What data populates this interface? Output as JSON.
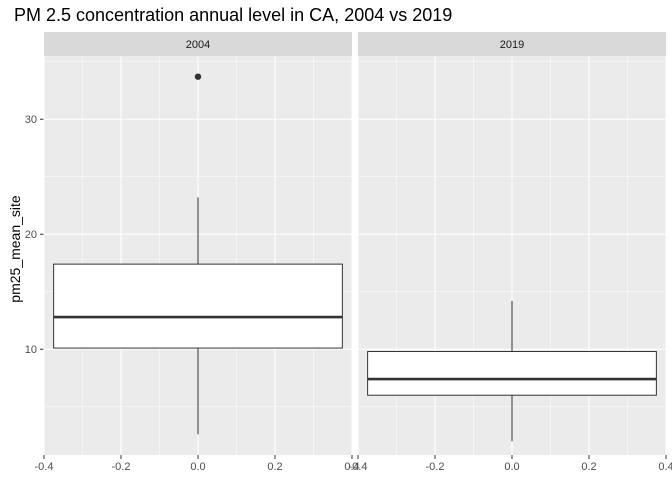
{
  "chart_data": {
    "type": "box",
    "title": "PM 2.5 concentration annual level in CA, 2004 vs 2019",
    "xlabel": "",
    "ylabel": "pm25_mean_site",
    "xlim": [
      -0.4,
      0.4
    ],
    "ylim": [
      0.8,
      35.5
    ],
    "x_ticks": [
      -0.4,
      -0.2,
      0.0,
      0.2,
      0.4
    ],
    "x_tick_labels": [
      "-0.4",
      "-0.2",
      "0.0",
      "0.2",
      "0.4"
    ],
    "y_ticks": [
      10,
      20,
      30
    ],
    "y_tick_labels": [
      "10",
      "20",
      "30"
    ],
    "grid": true,
    "facets": [
      {
        "label": "2004",
        "box": {
          "x_min": -0.375,
          "x_max": 0.375,
          "x_center": 0.0,
          "whisker_low": 2.6,
          "q1": 10.1,
          "median": 12.8,
          "q3": 17.4,
          "whisker_high": 23.2
        },
        "outliers": [
          33.7
        ]
      },
      {
        "label": "2019",
        "box": {
          "x_min": -0.375,
          "x_max": 0.375,
          "x_center": 0.0,
          "whisker_low": 2.0,
          "q1": 6.0,
          "median": 7.4,
          "q3": 9.8,
          "whisker_high": 14.2
        },
        "outliers": []
      }
    ],
    "colors": {
      "panel_bg": "#ebebeb",
      "strip_bg": "#d9d9d9",
      "grid": "#ffffff",
      "box_fill": "#ffffff",
      "box_line": "#333333"
    }
  }
}
